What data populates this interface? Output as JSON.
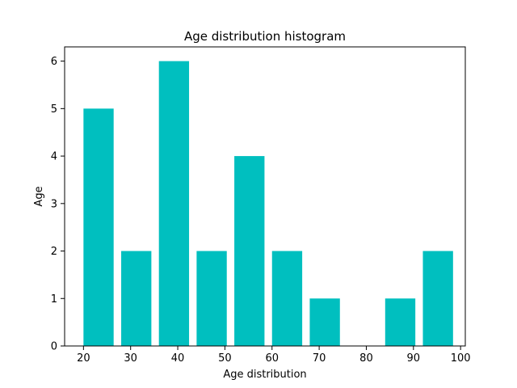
{
  "chart_data": {
    "type": "bar",
    "title": "Age distribution histogram",
    "xlabel": "Age distribution",
    "ylabel": "Age",
    "bins": [
      {
        "start": 20,
        "end": 28,
        "count": 5
      },
      {
        "start": 28,
        "end": 36,
        "count": 2
      },
      {
        "start": 36,
        "end": 44,
        "count": 6
      },
      {
        "start": 44,
        "end": 52,
        "count": 2
      },
      {
        "start": 52,
        "end": 60,
        "count": 4
      },
      {
        "start": 60,
        "end": 68,
        "count": 2
      },
      {
        "start": 68,
        "end": 76,
        "count": 1
      },
      {
        "start": 76,
        "end": 84,
        "count": 0
      },
      {
        "start": 84,
        "end": 92,
        "count": 1
      },
      {
        "start": 92,
        "end": 100,
        "count": 2
      }
    ],
    "bar_fill_ratio": 0.8,
    "xlim": [
      16,
      101
    ],
    "ylim": [
      0,
      6.3
    ],
    "xticks": [
      20,
      30,
      40,
      50,
      60,
      70,
      80,
      90,
      100
    ],
    "yticks": [
      0,
      1,
      2,
      3,
      4,
      5,
      6
    ],
    "bar_color": "#00bfbf",
    "grid": false,
    "legend": "none"
  }
}
